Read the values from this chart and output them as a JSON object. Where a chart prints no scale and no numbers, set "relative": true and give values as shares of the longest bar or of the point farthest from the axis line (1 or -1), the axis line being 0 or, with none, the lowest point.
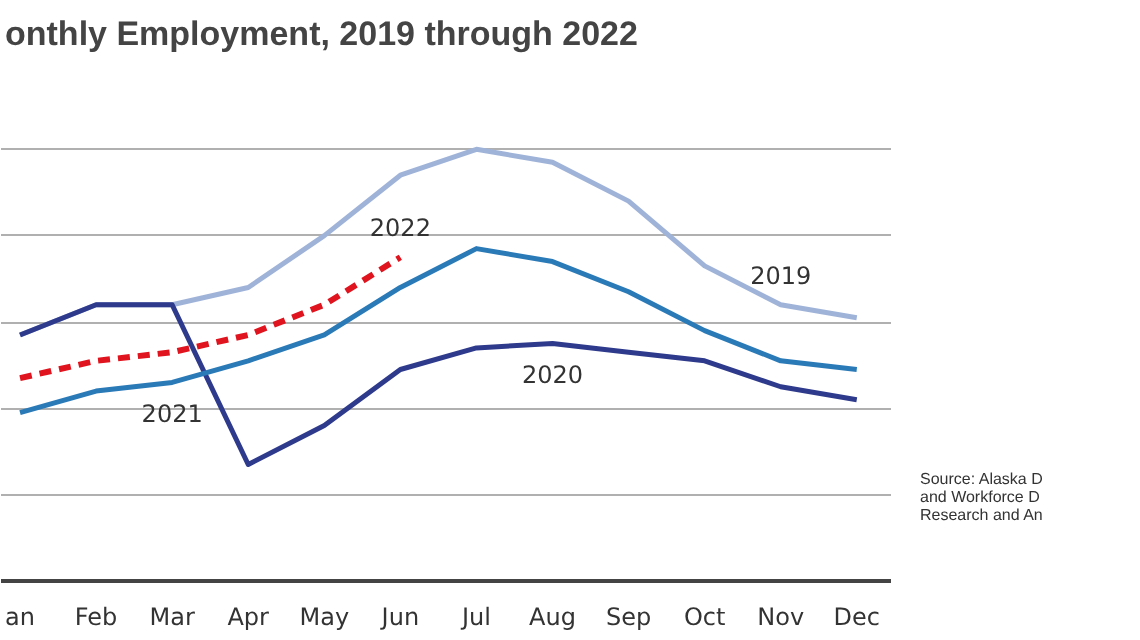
{
  "chart_data": {
    "type": "line",
    "title": "onthly Employment, 2019 through 2022",
    "relative": true,
    "grid": "y",
    "categories": [
      "an",
      "Feb",
      "Mar",
      "Apr",
      "May",
      "Jun",
      "Jul",
      "Aug",
      "Sep",
      "Oct",
      "Nov",
      "Dec"
    ],
    "series": [
      {
        "name": "2019",
        "color": "#9fb3d9",
        "values": [
          0.57,
          0.64,
          0.64,
          0.68,
          0.8,
          0.94,
          1.0,
          0.97,
          0.88,
          0.73,
          0.64,
          0.61
        ]
      },
      {
        "name": "2020",
        "color": "#2e3a8c",
        "values": [
          0.57,
          0.64,
          0.64,
          0.27,
          0.36,
          0.49,
          0.54,
          0.55,
          0.53,
          0.51,
          0.45,
          0.42
        ]
      },
      {
        "name": "2021",
        "color": "#2a7ab8",
        "values": [
          0.39,
          0.44,
          0.46,
          0.51,
          0.57,
          0.68,
          0.77,
          0.74,
          0.67,
          0.58,
          0.51,
          0.49
        ]
      },
      {
        "name": "2022",
        "color": "#e0141e",
        "line_style": "dashed",
        "values": [
          0.47,
          0.51,
          0.53,
          0.57,
          0.64,
          0.75,
          null,
          null,
          null,
          null,
          null,
          null
        ]
      }
    ],
    "annotations": [
      "Source: Alaska D\nand Workforce D\nResearch and An"
    ]
  }
}
